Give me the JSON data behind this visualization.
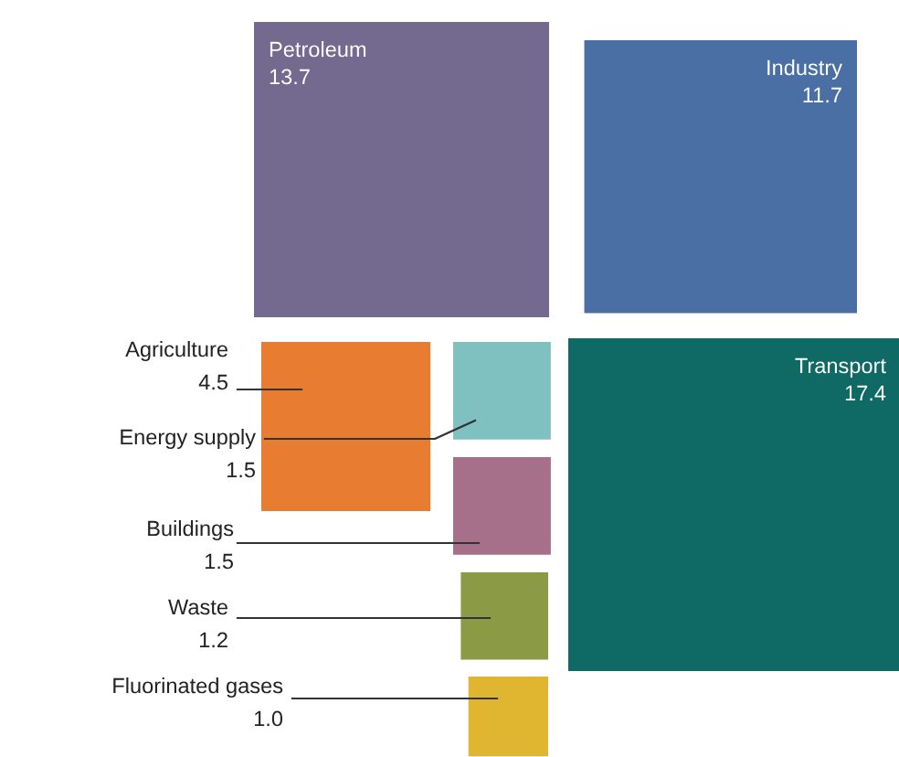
{
  "chart_data": {
    "type": "other",
    "categories": [
      "Petroleum",
      "Industry",
      "Transport",
      "Agriculture",
      "Energy supply",
      "Buildings",
      "Waste",
      "Fluorinated gases"
    ],
    "values": [
      13.7,
      11.7,
      17.4,
      4.5,
      1.5,
      1.5,
      1.2,
      1.0
    ],
    "colors": [
      "#74698f",
      "#4a6fa5",
      "#0f6a65",
      "#e87d31",
      "#7fc1c0",
      "#a6708a",
      "#8a9a45",
      "#e0b530"
    ],
    "value_labels": [
      "13.7",
      "11.7",
      "17.4",
      "4.5",
      "1.5",
      "1.5",
      "1.2",
      "1.0"
    ]
  }
}
